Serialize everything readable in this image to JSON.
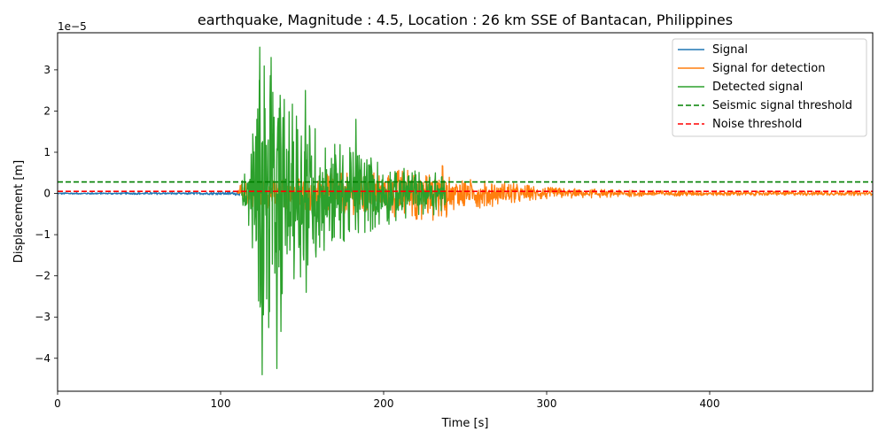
{
  "chart_data": {
    "type": "line",
    "title": "earthquake, Magnitude : 4.5, Location : 26 km SSE of Bantacan, Philippines",
    "xlabel": "Time [s]",
    "ylabel": "Displacement [m]",
    "y_offset_label": "1e−5",
    "xlim": [
      0,
      500
    ],
    "ylim": [
      -4.8,
      3.9
    ],
    "x_ticks": [
      0,
      100,
      200,
      300,
      400
    ],
    "y_ticks": [
      -4,
      -3,
      -2,
      -1,
      0,
      1,
      2,
      3
    ],
    "y_tick_labels": [
      "−4",
      "−3",
      "−2",
      "−1",
      "0",
      "1",
      "2",
      "3"
    ],
    "y_scale_exponent": -5,
    "grid": false,
    "legend_position": "top-right",
    "series": [
      {
        "name": "Signal",
        "color": "#1f77b4",
        "style": "solid",
        "envelope": [
          [
            0,
            0.02
          ],
          [
            100,
            0.03
          ],
          [
            112,
            0.05
          ]
        ]
      },
      {
        "name": "Signal for detection",
        "color": "#ff7f0e",
        "style": "solid",
        "envelope": [
          [
            110,
            0.05
          ],
          [
            113,
            0.3
          ],
          [
            238,
            0.7
          ],
          [
            240,
            0.4
          ],
          [
            260,
            0.35
          ],
          [
            280,
            0.25
          ],
          [
            300,
            0.15
          ],
          [
            350,
            0.08
          ],
          [
            400,
            0.06
          ],
          [
            450,
            0.05
          ],
          [
            500,
            0.05
          ]
        ]
      },
      {
        "name": "Detected signal",
        "color": "#2ca02c",
        "style": "solid",
        "envelope": [
          [
            113,
            0.3
          ],
          [
            118,
            0.9
          ],
          [
            122,
            2.2
          ],
          [
            125,
            3.55
          ],
          [
            130,
            3.3
          ],
          [
            135,
            2.8
          ],
          [
            140,
            2.3
          ],
          [
            150,
            2.0
          ],
          [
            160,
            1.6
          ],
          [
            170,
            1.3
          ],
          [
            180,
            1.1
          ],
          [
            190,
            1.0
          ],
          [
            200,
            0.8
          ],
          [
            215,
            0.6
          ],
          [
            230,
            0.55
          ],
          [
            238,
            0.4
          ]
        ],
        "peaks": [
          [
            124,
            3.55
          ],
          [
            125.5,
            -4.4
          ],
          [
            131,
            3.3
          ],
          [
            134.5,
            -4.25
          ],
          [
            137,
            -3.35
          ],
          [
            152,
            2.5
          ],
          [
            152.5,
            -2.4
          ],
          [
            183,
            1.8
          ]
        ]
      },
      {
        "name": "Seismic signal threshold",
        "color": "#008000",
        "style": "dashed",
        "value": 0.28
      },
      {
        "name": "Noise threshold",
        "color": "#ff0000",
        "style": "dashed",
        "value": 0.05
      }
    ]
  }
}
